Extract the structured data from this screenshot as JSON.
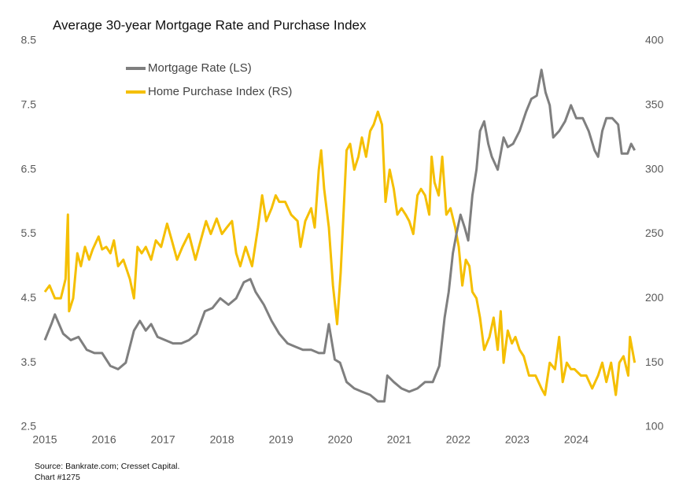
{
  "chart_data": {
    "type": "line",
    "title": "Average 30-year Mortgage Rate and Purchase Index",
    "note": "Source: Bankrate.com; Cresset Capital.",
    "chart_id": "Chart #1275",
    "xlim": [
      2015,
      2025.1
    ],
    "xticks": [
      2015,
      2016,
      2017,
      2018,
      2019,
      2020,
      2021,
      2022,
      2023,
      2024
    ],
    "ylim": [
      2.5,
      8.5
    ],
    "yticks": [
      2.5,
      3.5,
      4.5,
      5.5,
      6.5,
      7.5,
      8.5
    ],
    "y2lim": [
      100,
      400
    ],
    "y2ticks": [
      100,
      150,
      200,
      250,
      300,
      350,
      400
    ],
    "grid": false,
    "legend": "upper-left",
    "series": [
      {
        "name": "Mortgage Rate (LS)",
        "color": "#7f7f7f",
        "axis": "y",
        "x": [
          2015.0,
          2015.11,
          2015.17,
          2015.31,
          2015.44,
          2015.57,
          2015.71,
          2015.84,
          2015.97,
          2016.11,
          2016.24,
          2016.37,
          2016.51,
          2016.61,
          2016.71,
          2016.8,
          2016.91,
          2017.04,
          2017.17,
          2017.31,
          2017.44,
          2017.57,
          2017.71,
          2017.84,
          2017.97,
          2018.11,
          2018.24,
          2018.37,
          2018.48,
          2018.57,
          2018.71,
          2018.84,
          2018.97,
          2019.11,
          2019.24,
          2019.37,
          2019.51,
          2019.64,
          2019.73,
          2019.81,
          2019.91,
          2020.0,
          2020.11,
          2020.24,
          2020.37,
          2020.51,
          2020.64,
          2020.75,
          2020.8,
          2020.91,
          2021.04,
          2021.17,
          2021.31,
          2021.44,
          2021.57,
          2021.68,
          2021.77,
          2021.84,
          2021.91,
          2021.97,
          2022.04,
          2022.11,
          2022.17,
          2022.24,
          2022.31,
          2022.37,
          2022.44,
          2022.51,
          2022.57,
          2022.67,
          2022.77,
          2022.84,
          2022.93,
          2023.04,
          2023.15,
          2023.24,
          2023.33,
          2023.41,
          2023.48,
          2023.55,
          2023.61,
          2023.71,
          2023.81,
          2023.91,
          2024.0,
          2024.11,
          2024.21,
          2024.31,
          2024.37,
          2024.44,
          2024.51,
          2024.61,
          2024.71,
          2024.77,
          2024.87,
          2024.93,
          2024.99
        ],
        "values": [
          3.85,
          4.1,
          4.25,
          3.95,
          3.85,
          3.9,
          3.7,
          3.65,
          3.65,
          3.45,
          3.4,
          3.5,
          4.0,
          4.15,
          4.0,
          4.1,
          3.9,
          3.85,
          3.8,
          3.8,
          3.85,
          3.95,
          4.3,
          4.35,
          4.5,
          4.4,
          4.5,
          4.75,
          4.8,
          4.6,
          4.4,
          4.15,
          3.95,
          3.8,
          3.75,
          3.7,
          3.7,
          3.65,
          3.65,
          4.1,
          3.55,
          3.5,
          3.2,
          3.1,
          3.05,
          3.0,
          2.9,
          2.9,
          3.3,
          3.2,
          3.1,
          3.05,
          3.1,
          3.2,
          3.2,
          3.45,
          4.2,
          4.6,
          5.2,
          5.5,
          5.8,
          5.6,
          5.4,
          6.1,
          6.5,
          7.1,
          7.25,
          6.9,
          6.7,
          6.5,
          7.0,
          6.85,
          6.9,
          7.1,
          7.4,
          7.6,
          7.65,
          8.05,
          7.7,
          7.5,
          7.0,
          7.1,
          7.25,
          7.5,
          7.3,
          7.3,
          7.1,
          6.8,
          6.7,
          7.1,
          7.3,
          7.3,
          7.2,
          6.75,
          6.75,
          6.9,
          6.8
        ]
      },
      {
        "name": "Home Purchase Index (RS)",
        "color": "#f5bf00",
        "axis": "y2",
        "x": [
          2015.0,
          2015.08,
          2015.17,
          2015.27,
          2015.35,
          2015.39,
          2015.41,
          2015.48,
          2015.55,
          2015.61,
          2015.68,
          2015.75,
          2015.81,
          2015.91,
          2015.97,
          2016.04,
          2016.11,
          2016.17,
          2016.24,
          2016.33,
          2016.44,
          2016.51,
          2016.57,
          2016.64,
          2016.71,
          2016.8,
          2016.88,
          2016.97,
          2017.07,
          2017.15,
          2017.24,
          2017.33,
          2017.44,
          2017.55,
          2017.64,
          2017.73,
          2017.81,
          2017.91,
          2018.0,
          2018.08,
          2018.17,
          2018.24,
          2018.31,
          2018.4,
          2018.51,
          2018.61,
          2018.68,
          2018.75,
          2018.84,
          2018.91,
          2018.97,
          2019.07,
          2019.17,
          2019.28,
          2019.33,
          2019.41,
          2019.51,
          2019.57,
          2019.64,
          2019.68,
          2019.73,
          2019.81,
          2019.88,
          2019.95,
          2020.01,
          2020.11,
          2020.17,
          2020.24,
          2020.31,
          2020.37,
          2020.44,
          2020.51,
          2020.57,
          2020.64,
          2020.71,
          2020.77,
          2020.84,
          2020.91,
          2020.97,
          2021.04,
          2021.11,
          2021.17,
          2021.24,
          2021.31,
          2021.37,
          2021.44,
          2021.51,
          2021.55,
          2021.6,
          2021.67,
          2021.73,
          2021.8,
          2021.87,
          2021.95,
          2022.01,
          2022.07,
          2022.13,
          2022.19,
          2022.24,
          2022.31,
          2022.37,
          2022.44,
          2022.53,
          2022.6,
          2022.67,
          2022.72,
          2022.77,
          2022.84,
          2022.91,
          2022.97,
          2023.04,
          2023.11,
          2023.2,
          2023.31,
          2023.41,
          2023.47,
          2023.55,
          2023.64,
          2023.71,
          2023.77,
          2023.84,
          2023.91,
          2023.97,
          2024.08,
          2024.17,
          2024.27,
          2024.37,
          2024.44,
          2024.51,
          2024.59,
          2024.67,
          2024.73,
          2024.8,
          2024.88,
          2024.91,
          2024.95,
          2024.99
        ],
        "values": [
          205,
          210,
          200,
          200,
          215,
          265,
          190,
          200,
          235,
          225,
          240,
          230,
          238,
          248,
          238,
          240,
          235,
          245,
          225,
          230,
          215,
          200,
          240,
          235,
          240,
          230,
          245,
          240,
          258,
          245,
          230,
          240,
          250,
          230,
          245,
          260,
          250,
          262,
          250,
          255,
          260,
          235,
          225,
          240,
          225,
          255,
          280,
          260,
          270,
          280,
          275,
          275,
          265,
          260,
          240,
          260,
          270,
          255,
          300,
          315,
          285,
          255,
          210,
          180,
          220,
          315,
          320,
          300,
          310,
          325,
          310,
          330,
          335,
          345,
          335,
          275,
          300,
          285,
          265,
          270,
          265,
          260,
          250,
          280,
          285,
          280,
          265,
          310,
          290,
          280,
          310,
          265,
          270,
          255,
          240,
          210,
          230,
          225,
          205,
          200,
          185,
          160,
          170,
          185,
          160,
          190,
          150,
          175,
          165,
          170,
          160,
          155,
          140,
          140,
          130,
          125,
          150,
          145,
          170,
          135,
          150,
          145,
          145,
          140,
          140,
          130,
          140,
          150,
          135,
          150,
          125,
          150,
          155,
          140,
          170,
          160,
          150
        ]
      }
    ]
  }
}
